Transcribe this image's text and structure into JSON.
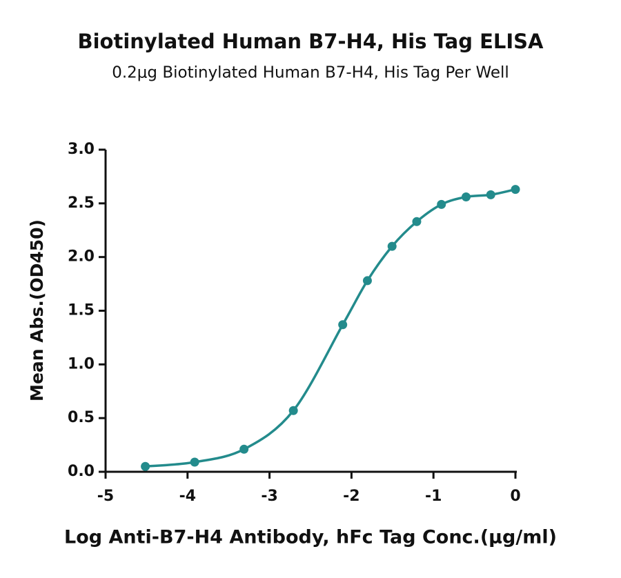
{
  "chart_data": {
    "type": "scatter",
    "title": "Biotinylated Human B7-H4, His Tag ELISA",
    "subtitle": "0.2μg Biotinylated Human B7-H4, His Tag Per Well",
    "x_label": "Log Anti-B7-H4 Antibody, hFc Tag Conc.(μg/ml)",
    "y_label": "Mean Abs.(OD450)",
    "x": [
      -4.515,
      -3.913,
      -3.311,
      -2.709,
      -2.107,
      -1.806,
      -1.505,
      -1.204,
      -0.903,
      -0.602,
      -0.301,
      0
    ],
    "series": [
      {
        "color": "#238b8c",
        "values": [
          0.05,
          0.09,
          0.21,
          0.57,
          1.37,
          1.78,
          2.1,
          2.33,
          2.49,
          2.56,
          2.58,
          2.63
        ]
      }
    ],
    "xlim": [
      -5,
      0
    ],
    "xticks": [
      -5,
      -4,
      -3,
      -2,
      -1,
      0
    ],
    "ylim": [
      0,
      3
    ],
    "yticks": [
      {
        "value": 0,
        "label": "0.0"
      },
      0.5,
      {
        "value": 1,
        "label": "1.0"
      },
      1.5,
      {
        "value": 2,
        "label": "2.0"
      },
      2.5,
      {
        "value": 3,
        "label": "3.0"
      }
    ]
  }
}
